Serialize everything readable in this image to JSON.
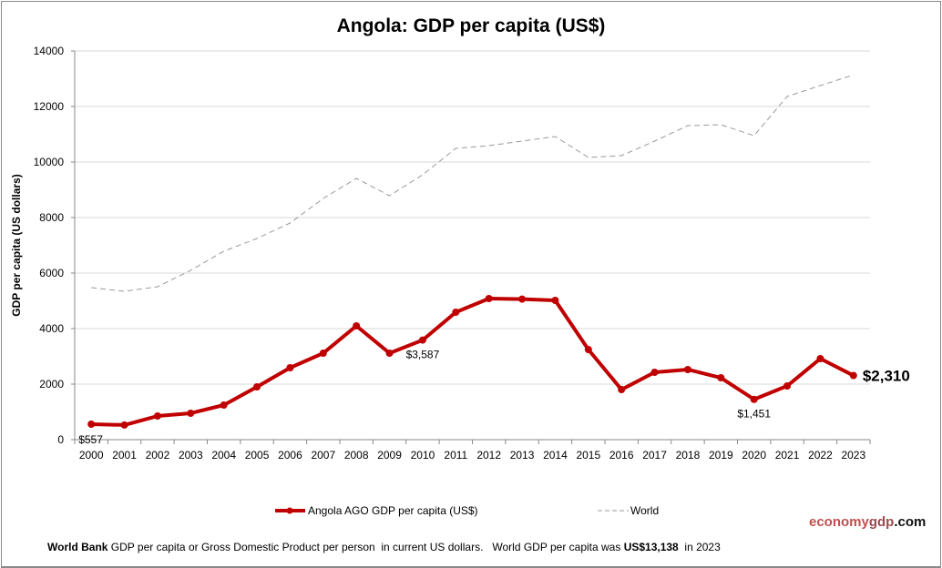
{
  "chart_data": {
    "type": "line",
    "title": "Angola: GDP per capita (US$)",
    "xlabel": "",
    "ylabel": "GDP per capita (US dollars)",
    "ylim": [
      0,
      14000
    ],
    "yticks": [
      "0",
      "2000",
      "4000",
      "6000",
      "8000",
      "10000",
      "12000",
      "14000"
    ],
    "grid": true,
    "legend_position": "bottom",
    "categories": [
      "2000",
      "2001",
      "2002",
      "2003",
      "2004",
      "2005",
      "2006",
      "2007",
      "2008",
      "2009",
      "2010",
      "2011",
      "2012",
      "2013",
      "2014",
      "2015",
      "2016",
      "2017",
      "2018",
      "2019",
      "2020",
      "2021",
      "2022",
      "2023"
    ],
    "series": [
      {
        "name": "Angola AGO GDP per capita (US$)",
        "color": "#c00000",
        "values": [
          557,
          527,
          852,
          951,
          1246,
          1902,
          2590,
          3115,
          4098,
          3115,
          3587,
          4590,
          5082,
          5062,
          5016,
          3246,
          1803,
          2426,
          2525,
          2229,
          1451,
          1934,
          2918,
          2310
        ]
      },
      {
        "name": "World",
        "color": "#999999",
        "values": [
          5475,
          5344,
          5508,
          6098,
          6787,
          7246,
          7803,
          8689,
          9410,
          8787,
          9541,
          10492,
          10590,
          10754,
          10918,
          10164,
          10229,
          10754,
          11311,
          11344,
          10951,
          12361,
          12754,
          13138
        ]
      }
    ],
    "annotations": [
      {
        "category": "2000",
        "text": "$557"
      },
      {
        "category": "2010",
        "text": "$3,587"
      },
      {
        "category": "2020",
        "text": "$1,451"
      },
      {
        "category": "2023",
        "text": "$2,310"
      }
    ]
  },
  "footer": {
    "source_bold": "World Bank",
    "source_text": " GDP per capita or Gross Domestic Product per person  in current US dollars.   World GDP per capita was ",
    "world_value": "US$13,138",
    "year_text": "  in 2023"
  },
  "brand": {
    "part1": "economy",
    "part2": "gdp",
    "part3": ".com",
    "color1": "#c0504d",
    "color2": "#9b4b4b",
    "color3": "#111111"
  }
}
